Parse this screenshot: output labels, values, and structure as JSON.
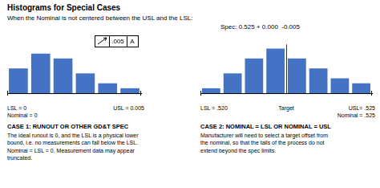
{
  "chart_data": [
    {
      "type": "bar",
      "title": "Histograms for Special Cases",
      "subtitle": "When the Nominal is not centered between the USL and the LSL:",
      "categories": [
        null,
        null,
        null,
        null,
        null,
        null
      ],
      "values": [
        5,
        8,
        7,
        4,
        2,
        1
      ],
      "color": "#4472C4",
      "ylim": [
        0,
        12
      ],
      "grid": false,
      "tick_labels": false,
      "annotations": [
        "LSL = 0",
        "USL = 0.005",
        "Nominal = 0",
        ".005",
        "A",
        "CASE 1: RUNOUT OR OTHER GD&T SPEC",
        "The ideal runout is 0, and the LSL is a physical lower\nbound, i.e. no measurements can fall below the LSL.\nNominal = LSL = 0. Measurement data may appear\ntruncated."
      ]
    },
    {
      "type": "bar",
      "categories": [
        null,
        null,
        null,
        null,
        null,
        null,
        null,
        null
      ],
      "values": [
        1,
        4,
        7,
        9,
        7,
        5,
        3,
        2
      ],
      "color": "#4472C4",
      "ylim": [
        0,
        12
      ],
      "grid": false,
      "tick_labels": false,
      "annotations": [
        "Spec: 0.525 + 0.000  -0.005",
        "LSL = .520",
        "Target",
        "USL= .525",
        "Nominal = .525",
        "CASE 2: NOMINAL = LSL OR NOMINAL = USL",
        "Manufacturer will need to select a target offset from\nthe nominal, so that the tails of the process do not\nextend beyond the spec limits."
      ]
    }
  ]
}
